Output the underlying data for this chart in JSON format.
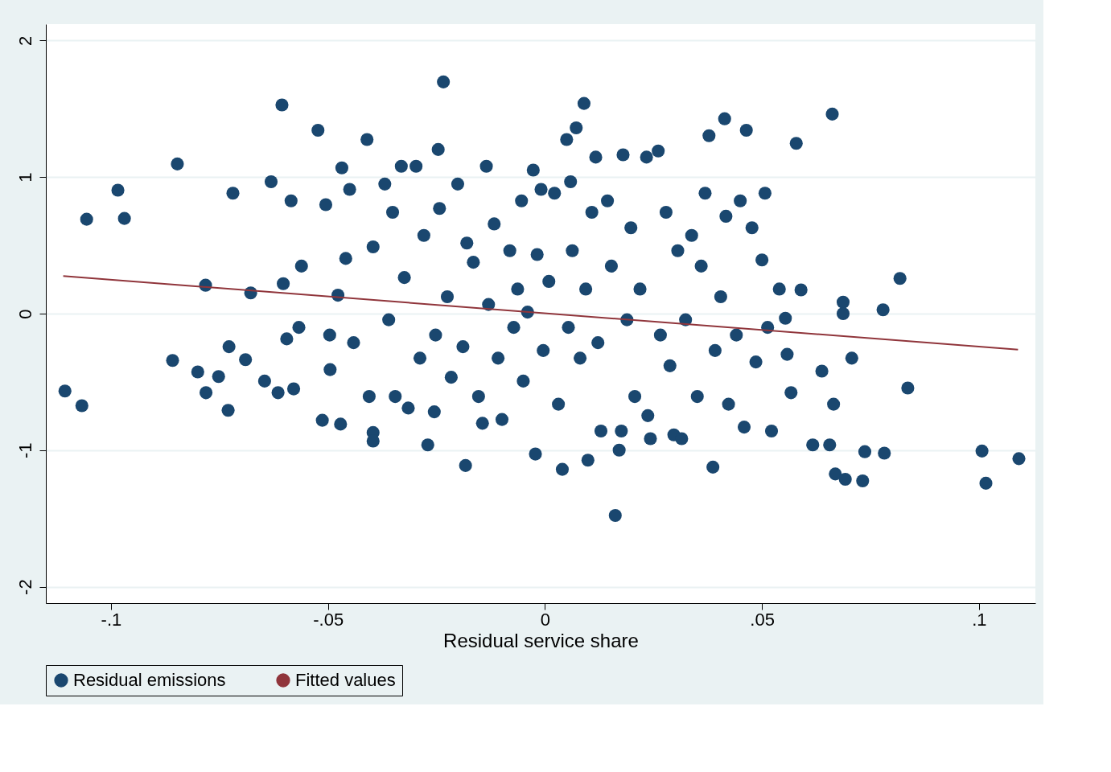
{
  "chart_data": {
    "type": "scatter",
    "xlabel": "Residual service share",
    "xlim": [
      -0.115,
      0.113
    ],
    "ylim": [
      -2.12,
      2.12
    ],
    "xticks": [
      {
        "value": -0.1,
        "label": "-.1"
      },
      {
        "value": -0.05,
        "label": "-.05"
      },
      0,
      {
        "value": 0.05,
        "label": ".05"
      },
      {
        "value": 0.1,
        "label": ".1"
      }
    ],
    "yticks": [
      -2,
      -1,
      0,
      1,
      2
    ],
    "grid": "y",
    "legend": "bottom",
    "series": [
      {
        "name": "Residual emissions",
        "color": "#1a476f",
        "marker": "circle",
        "x": [
          -0.1106,
          -0.1067,
          -0.1056,
          -0.0984,
          -0.0969,
          -0.0847,
          -0.0858,
          -0.08,
          -0.0782,
          -0.0781,
          -0.0752,
          -0.073,
          -0.0719,
          -0.0728,
          -0.0678,
          -0.069,
          -0.0646,
          -0.0631,
          -0.0615,
          -0.0606,
          -0.0603,
          -0.0595,
          -0.0585,
          -0.0579,
          -0.0561,
          -0.0567,
          -0.0523,
          -0.0513,
          -0.0505,
          -0.0496,
          -0.0495,
          -0.0471,
          -0.0468,
          -0.0477,
          -0.045,
          -0.0459,
          -0.0441,
          -0.041,
          -0.0405,
          -0.0396,
          -0.0396,
          -0.0396,
          -0.0369,
          -0.036,
          -0.0351,
          -0.0345,
          -0.0331,
          -0.0324,
          -0.0315,
          -0.0297,
          -0.0288,
          -0.0279,
          -0.027,
          -0.0255,
          -0.0246,
          -0.0243,
          -0.0252,
          -0.0234,
          -0.0225,
          -0.0216,
          -0.0201,
          -0.0183,
          -0.018,
          -0.0189,
          -0.0165,
          -0.0153,
          -0.0144,
          -0.0135,
          -0.013,
          -0.0117,
          -0.0108,
          -0.0099,
          -0.0081,
          -0.0072,
          -0.0063,
          -0.0054,
          -0.005,
          -0.004,
          -0.0027,
          -0.0022,
          -0.0018,
          -0.0009,
          -0.0004,
          0.0009,
          0.0022,
          0.0031,
          0.004,
          0.005,
          0.0054,
          0.0059,
          0.0063,
          0.0072,
          0.0081,
          0.009,
          0.0094,
          0.0099,
          0.0108,
          0.0117,
          0.0122,
          0.0129,
          0.0144,
          0.0153,
          0.0162,
          0.0171,
          0.0176,
          0.018,
          0.0189,
          0.0198,
          0.0207,
          0.0219,
          0.0234,
          0.0237,
          0.0243,
          0.0261,
          0.0266,
          0.0279,
          0.0288,
          0.0297,
          0.0306,
          0.0315,
          0.0324,
          0.0338,
          0.0351,
          0.036,
          0.0369,
          0.0378,
          0.0387,
          0.0392,
          0.0405,
          0.0414,
          0.0417,
          0.0423,
          0.0441,
          0.045,
          0.0459,
          0.0464,
          0.0477,
          0.0486,
          0.05,
          0.0507,
          0.0513,
          0.0522,
          0.054,
          0.0554,
          0.0558,
          0.0567,
          0.0579,
          0.059,
          0.0617,
          0.0638,
          0.0656,
          0.0662,
          0.0665,
          0.0669,
          0.0687,
          0.0687,
          0.0692,
          0.0707,
          0.0732,
          0.0737,
          0.0779,
          0.0782,
          0.0818,
          0.0836,
          0.1007,
          0.1016,
          0.1092
        ],
        "values": [
          -0.567,
          -0.674,
          0.691,
          0.904,
          0.697,
          1.096,
          -0.343,
          -0.427,
          0.208,
          -0.579,
          -0.461,
          -0.708,
          0.882,
          -0.242,
          0.152,
          -0.337,
          -0.494,
          0.966,
          -0.579,
          1.528,
          0.219,
          -0.185,
          0.826,
          -0.551,
          0.348,
          -0.101,
          1.343,
          -0.781,
          0.798,
          -0.157,
          -0.41,
          -0.809,
          1.067,
          0.135,
          0.91,
          0.404,
          -0.213,
          1.275,
          -0.607,
          -0.871,
          -0.933,
          0.489,
          0.949,
          -0.045,
          0.742,
          -0.607,
          1.079,
          0.264,
          -0.691,
          1.079,
          -0.326,
          0.573,
          -0.961,
          -0.719,
          1.202,
          0.77,
          -0.157,
          1.697,
          0.124,
          -0.466,
          0.949,
          -1.112,
          0.517,
          -0.242,
          0.376,
          -0.607,
          -0.803,
          1.079,
          0.067,
          0.657,
          -0.326,
          -0.775,
          0.461,
          -0.101,
          0.18,
          0.826,
          -0.494,
          0.011,
          1.051,
          -1.028,
          0.433,
          0.91,
          -0.27,
          0.236,
          0.882,
          -0.663,
          -1.14,
          1.275,
          -0.101,
          0.966,
          0.461,
          1.36,
          -0.326,
          1.539,
          0.18,
          -1.073,
          0.742,
          1.146,
          -0.213,
          -0.86,
          0.826,
          0.348,
          -1.478,
          -1.0,
          -0.86,
          1.163,
          -0.045,
          0.629,
          -0.607,
          0.18,
          1.146,
          -0.747,
          -0.916,
          1.191,
          -0.157,
          0.742,
          -0.382,
          -0.888,
          0.461,
          -0.916,
          -0.045,
          0.573,
          -0.607,
          0.348,
          0.882,
          1.303,
          -1.124,
          -0.27,
          0.124,
          1.427,
          0.713,
          -0.663,
          -0.157,
          0.826,
          -0.831,
          1.343,
          0.629,
          -0.354,
          0.393,
          0.882,
          -0.101,
          -0.86,
          0.18,
          -0.034,
          -0.298,
          -0.579,
          1.247,
          0.174,
          -0.961,
          -0.421,
          -0.961,
          1.461,
          -0.663,
          -1.174,
          0.084,
          0.0,
          -1.213,
          -0.326,
          -1.225,
          -1.011,
          0.028,
          -1.022,
          0.258,
          -0.545,
          -1.006,
          -1.242,
          -1.062
        ]
      },
      {
        "name": "Fitted values",
        "color": "#90353b",
        "type": "line",
        "marker": "none",
        "x": [
          -0.111,
          0.109
        ],
        "values": [
          0.275,
          -0.264
        ]
      }
    ]
  }
}
